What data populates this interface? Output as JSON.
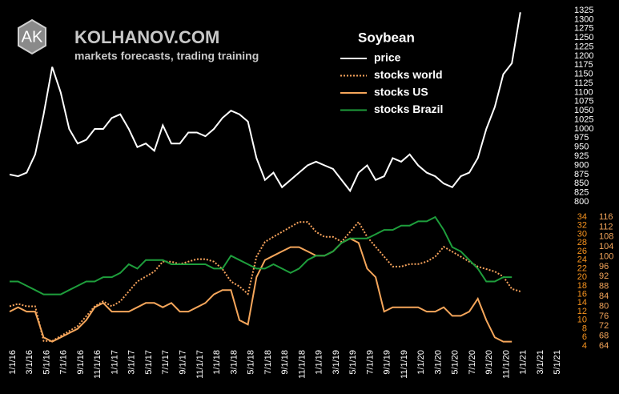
{
  "header": {
    "logo": "AK",
    "title": "KOLHANOV.COM",
    "subtitle": "markets forecasts, trading training"
  },
  "chart_data": [
    {
      "type": "line",
      "title": "Soybean",
      "x": [
        "1/1/16",
        "2/1/16",
        "3/1/16",
        "4/1/16",
        "5/1/16",
        "6/1/16",
        "7/1/16",
        "8/1/16",
        "9/1/16",
        "10/1/16",
        "11/1/16",
        "12/1/16",
        "1/1/17",
        "2/1/17",
        "3/1/17",
        "4/1/17",
        "5/1/17",
        "6/1/17",
        "7/1/17",
        "8/1/17",
        "9/1/17",
        "10/1/17",
        "11/1/17",
        "12/1/17",
        "1/1/18",
        "2/1/18",
        "3/1/18",
        "4/1/18",
        "5/1/18",
        "6/1/18",
        "7/1/18",
        "8/1/18",
        "9/1/18",
        "10/1/18",
        "11/1/18",
        "12/1/18",
        "1/1/19",
        "2/1/19",
        "3/1/19",
        "4/1/19",
        "5/1/19",
        "6/1/19",
        "7/1/19",
        "8/1/19",
        "9/1/19",
        "10/1/19",
        "11/1/19",
        "12/1/19",
        "1/1/20",
        "2/1/20",
        "3/1/20",
        "4/1/20",
        "5/1/20",
        "6/1/20",
        "7/1/20",
        "8/1/20",
        "9/1/20",
        "10/1/20",
        "11/1/20",
        "12/1/20",
        "1/1/21"
      ],
      "series": [
        {
          "name": "price",
          "color": "#ffffff",
          "dash": "solid",
          "values": [
            875,
            870,
            880,
            930,
            1040,
            1170,
            1100,
            1000,
            960,
            970,
            1000,
            1000,
            1030,
            1040,
            1000,
            950,
            960,
            940,
            1010,
            960,
            960,
            990,
            990,
            980,
            1000,
            1030,
            1050,
            1040,
            1020,
            920,
            860,
            880,
            840,
            860,
            880,
            900,
            910,
            900,
            890,
            860,
            830,
            880,
            900,
            860,
            870,
            920,
            910,
            930,
            900,
            880,
            870,
            850,
            840,
            870,
            880,
            920,
            1000,
            1060,
            1150,
            1180,
            1320
          ]
        }
      ],
      "ylim": [
        800,
        1325
      ],
      "yticks": [
        800,
        825,
        850,
        875,
        900,
        925,
        950,
        975,
        1000,
        1025,
        1050,
        1075,
        1100,
        1125,
        1150,
        1175,
        1200,
        1225,
        1250,
        1275,
        1300,
        1325
      ]
    },
    {
      "type": "line",
      "x": [
        "1/1/16",
        "2/1/16",
        "3/1/16",
        "4/1/16",
        "5/1/16",
        "6/1/16",
        "7/1/16",
        "8/1/16",
        "9/1/16",
        "10/1/16",
        "11/1/16",
        "12/1/16",
        "1/1/17",
        "2/1/17",
        "3/1/17",
        "4/1/17",
        "5/1/17",
        "6/1/17",
        "7/1/17",
        "8/1/17",
        "9/1/17",
        "10/1/17",
        "11/1/17",
        "12/1/17",
        "1/1/18",
        "2/1/18",
        "3/1/18",
        "4/1/18",
        "5/1/18",
        "6/1/18",
        "7/1/18",
        "8/1/18",
        "9/1/18",
        "10/1/18",
        "11/1/18",
        "12/1/18",
        "1/1/19",
        "2/1/19",
        "3/1/19",
        "4/1/19",
        "5/1/19",
        "6/1/19",
        "7/1/19",
        "8/1/19",
        "9/1/19",
        "10/1/19",
        "11/1/19",
        "12/1/19",
        "1/1/20",
        "2/1/20",
        "3/1/20",
        "4/1/20",
        "5/1/20",
        "6/1/20",
        "7/1/20",
        "8/1/20",
        "9/1/20",
        "10/1/20",
        "11/1/20",
        "12/1/20",
        "1/1/21"
      ],
      "xticks": [
        "1/1/16",
        "3/1/16",
        "5/1/16",
        "7/1/16",
        "9/1/16",
        "11/1/16",
        "1/1/17",
        "3/1/17",
        "5/1/17",
        "7/1/17",
        "9/1/17",
        "11/1/17",
        "1/1/18",
        "3/1/18",
        "5/1/18",
        "7/1/18",
        "9/1/18",
        "11/1/18",
        "1/1/19",
        "3/1/19",
        "5/1/19",
        "7/1/19",
        "9/1/19",
        "11/1/19",
        "1/1/20",
        "3/1/20",
        "5/1/20",
        "7/1/20",
        "9/1/20",
        "11/1/20",
        "1/1/21",
        "3/1/21",
        "5/1/21"
      ],
      "series": [
        {
          "name": "stocks world",
          "color": "#f7a35c",
          "dash": "dotted",
          "axis": "y2",
          "values": [
            80,
            81,
            80,
            80,
            66,
            66,
            68,
            70,
            72,
            76,
            80,
            82,
            80,
            82,
            86,
            90,
            92,
            94,
            98,
            98,
            97,
            98,
            99,
            99,
            98,
            95,
            90,
            88,
            85,
            100,
            106,
            108,
            110,
            112,
            114,
            114,
            110,
            108,
            108,
            106,
            110,
            114,
            108,
            104,
            100,
            96,
            96,
            97,
            97,
            98,
            100,
            104,
            102,
            100,
            98,
            96,
            95,
            94,
            92,
            87,
            86
          ]
        },
        {
          "name": "stocks US",
          "color": "#f5a65b",
          "dash": "solid",
          "axis": "y",
          "values": [
            12,
            13,
            12,
            12,
            6,
            5,
            6,
            7,
            8,
            10,
            13,
            14,
            12,
            12,
            12,
            13,
            14,
            14,
            13,
            14,
            12,
            12,
            13,
            14,
            16,
            17,
            17,
            10,
            9,
            20,
            24,
            25,
            26,
            27,
            27,
            26,
            25,
            25,
            26,
            28,
            29,
            28,
            22,
            20,
            12,
            13,
            13,
            13,
            13,
            12,
            12,
            13,
            11,
            11,
            12,
            15,
            10,
            6,
            5,
            5,
            null
          ]
        },
        {
          "name": "stocks Brazil",
          "color": "#1e9e3c",
          "dash": "solid",
          "axis": "y",
          "values": [
            19,
            19,
            18,
            17,
            16,
            16,
            16,
            17,
            18,
            19,
            19,
            20,
            20,
            21,
            23,
            22,
            24,
            24,
            24,
            23,
            23,
            23,
            23,
            23,
            22,
            22,
            25,
            24,
            23,
            22,
            22,
            23,
            22,
            21,
            22,
            24,
            25,
            25,
            26,
            28,
            29,
            29,
            29,
            30,
            31,
            31,
            32,
            32,
            33,
            33,
            34,
            31,
            27,
            26,
            24,
            22,
            19,
            19,
            20,
            20,
            null
          ]
        }
      ],
      "ylim": [
        4,
        34
      ],
      "yticks": [
        4,
        6,
        8,
        10,
        12,
        14,
        16,
        18,
        20,
        22,
        24,
        26,
        28,
        30,
        32,
        34
      ],
      "ycolor": "#f7931e",
      "y2lim": [
        64,
        116
      ],
      "y2ticks": [
        64,
        68,
        72,
        76,
        80,
        84,
        88,
        92,
        96,
        100,
        104,
        108,
        112,
        116
      ],
      "y2color": "#f5a65b"
    }
  ]
}
